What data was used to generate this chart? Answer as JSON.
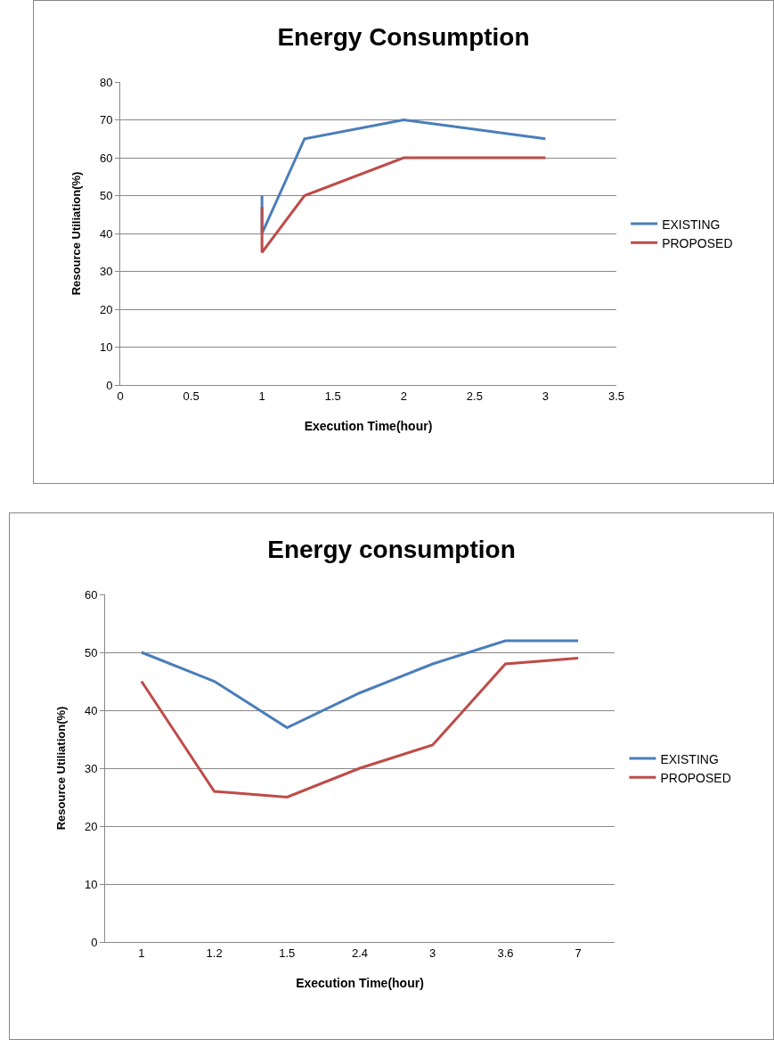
{
  "chart_data": [
    {
      "type": "line",
      "title": "Energy Consumption",
      "xlabel": "Execution Time(hour)",
      "ylabel": "Resource Utiliation(%)",
      "xlim": [
        0,
        3.5
      ],
      "xticks": [
        0,
        0.5,
        1,
        1.5,
        2,
        2.5,
        3,
        3.5
      ],
      "ylim": [
        0,
        80
      ],
      "yticks": [
        0,
        10,
        20,
        30,
        40,
        50,
        60,
        70,
        80
      ],
      "grid": "y",
      "legend": "right",
      "marker": "none",
      "line_style": "solid",
      "series": [
        {
          "name": "EXISTING",
          "color": "#4a7ebb",
          "x": [
            1,
            1,
            1.3,
            2,
            3
          ],
          "values": [
            50,
            40,
            65,
            70,
            65
          ]
        },
        {
          "name": "PROPOSED",
          "color": "#be4b48",
          "x": [
            1,
            1,
            1.3,
            2,
            3
          ],
          "values": [
            47,
            35,
            50,
            60,
            60
          ]
        }
      ]
    },
    {
      "type": "line",
      "title": "Energy consumption",
      "xlabel": "Execution Time(hour)",
      "ylabel": "Resource Utiliation(%)",
      "categories": [
        "1",
        "1.2",
        "1.5",
        "2.4",
        "3",
        "3.6",
        "7"
      ],
      "ylim": [
        0,
        60
      ],
      "yticks": [
        0,
        10,
        20,
        30,
        40,
        50,
        60
      ],
      "grid": "y",
      "legend": "right",
      "marker": "none",
      "line_style": "solid",
      "series": [
        {
          "name": "EXISTING",
          "color": "#4a7ebb",
          "values": [
            50,
            45,
            37,
            43,
            48,
            52,
            52
          ]
        },
        {
          "name": "PROPOSED",
          "color": "#be4b48",
          "values": [
            45,
            26,
            25,
            30,
            34,
            48,
            49
          ]
        }
      ]
    }
  ]
}
